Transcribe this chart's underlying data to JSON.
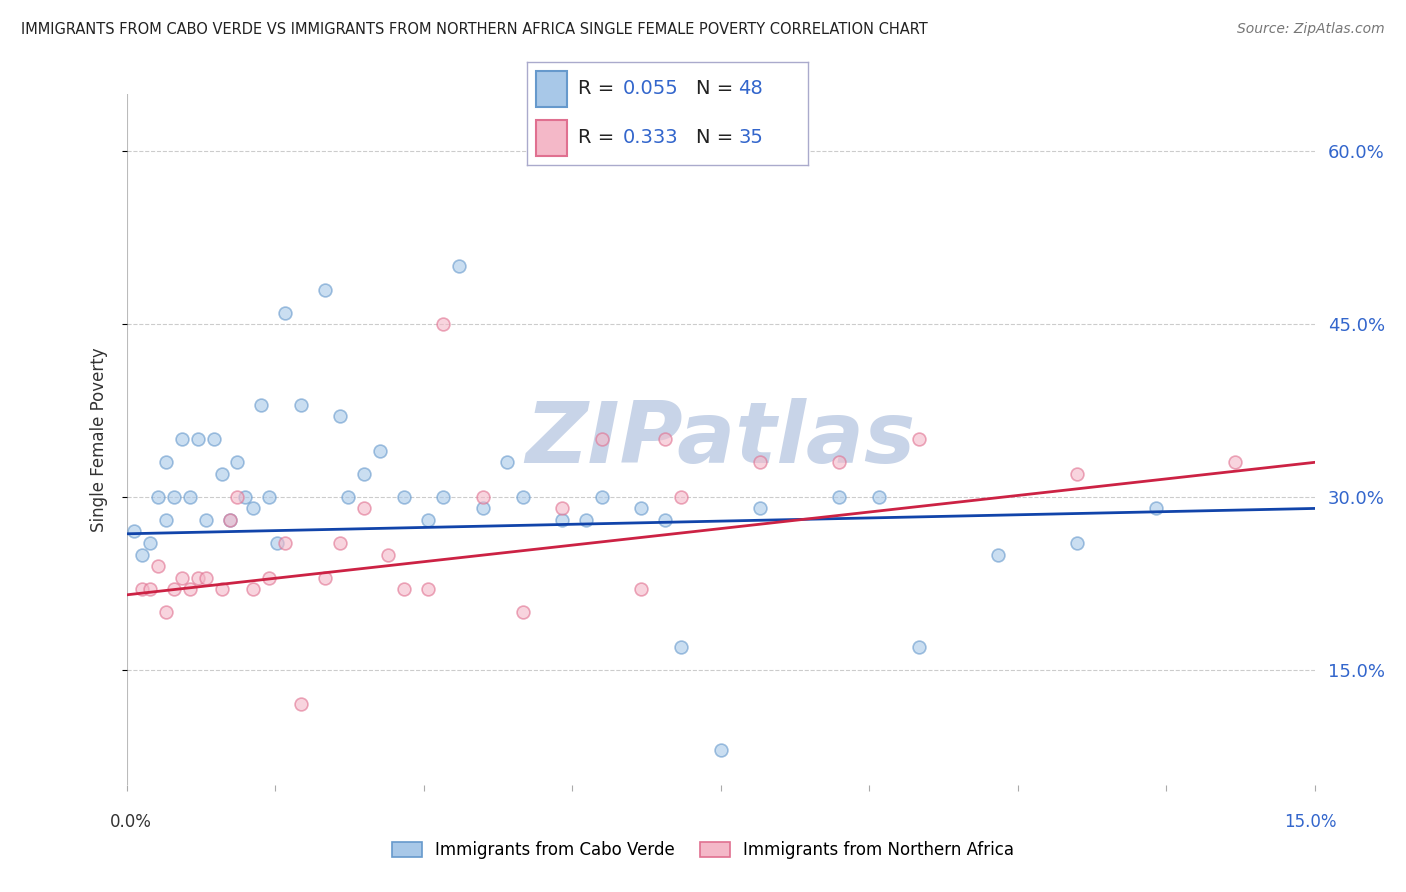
{
  "title": "IMMIGRANTS FROM CABO VERDE VS IMMIGRANTS FROM NORTHERN AFRICA SINGLE FEMALE POVERTY CORRELATION CHART",
  "source": "Source: ZipAtlas.com",
  "ylabel": "Single Female Poverty",
  "xlim": [
    0.0,
    0.15
  ],
  "ylim": [
    0.05,
    0.65
  ],
  "yticks": [
    0.15,
    0.3,
    0.45,
    0.6
  ],
  "ytick_labels": [
    "15.0%",
    "30.0%",
    "45.0%",
    "60.0%"
  ],
  "cabo_verde_color": "#a8c8e8",
  "cabo_verde_edge": "#6699cc",
  "north_africa_color": "#f4b8c8",
  "north_africa_edge": "#e07090",
  "trend_cabo_color": "#1144aa",
  "trend_north_color": "#cc2244",
  "cabo_verde_R": 0.055,
  "cabo_verde_N": 48,
  "north_africa_R": 0.333,
  "north_africa_N": 35,
  "cabo_verde_x": [
    0.001,
    0.002,
    0.003,
    0.004,
    0.005,
    0.005,
    0.006,
    0.007,
    0.008,
    0.009,
    0.01,
    0.011,
    0.012,
    0.013,
    0.014,
    0.015,
    0.016,
    0.017,
    0.018,
    0.019,
    0.02,
    0.022,
    0.025,
    0.027,
    0.028,
    0.03,
    0.032,
    0.035,
    0.038,
    0.04,
    0.042,
    0.045,
    0.048,
    0.05,
    0.055,
    0.058,
    0.06,
    0.065,
    0.068,
    0.07,
    0.075,
    0.08,
    0.09,
    0.095,
    0.1,
    0.11,
    0.12,
    0.13
  ],
  "cabo_verde_y": [
    0.27,
    0.25,
    0.26,
    0.3,
    0.28,
    0.33,
    0.3,
    0.35,
    0.3,
    0.35,
    0.28,
    0.35,
    0.32,
    0.28,
    0.33,
    0.3,
    0.29,
    0.38,
    0.3,
    0.26,
    0.46,
    0.38,
    0.48,
    0.37,
    0.3,
    0.32,
    0.34,
    0.3,
    0.28,
    0.3,
    0.5,
    0.29,
    0.33,
    0.3,
    0.28,
    0.28,
    0.3,
    0.29,
    0.28,
    0.17,
    0.08,
    0.29,
    0.3,
    0.3,
    0.17,
    0.25,
    0.26,
    0.29
  ],
  "north_africa_x": [
    0.002,
    0.003,
    0.004,
    0.005,
    0.006,
    0.007,
    0.008,
    0.009,
    0.01,
    0.012,
    0.013,
    0.014,
    0.016,
    0.018,
    0.02,
    0.022,
    0.025,
    0.027,
    0.03,
    0.033,
    0.035,
    0.038,
    0.04,
    0.045,
    0.05,
    0.055,
    0.06,
    0.065,
    0.068,
    0.07,
    0.08,
    0.09,
    0.1,
    0.12,
    0.14
  ],
  "north_africa_y": [
    0.22,
    0.22,
    0.24,
    0.2,
    0.22,
    0.23,
    0.22,
    0.23,
    0.23,
    0.22,
    0.28,
    0.3,
    0.22,
    0.23,
    0.26,
    0.12,
    0.23,
    0.26,
    0.29,
    0.25,
    0.22,
    0.22,
    0.45,
    0.3,
    0.2,
    0.29,
    0.35,
    0.22,
    0.35,
    0.3,
    0.33,
    0.33,
    0.35,
    0.32,
    0.33
  ],
  "background_color": "#ffffff",
  "grid_color": "#cccccc",
  "watermark": "ZIPatlas",
  "watermark_color": "#c8d4e8",
  "marker_size": 85,
  "marker_alpha": 0.6,
  "legend_label_1": "Immigrants from Cabo Verde",
  "legend_label_2": "Immigrants from Northern Africa"
}
